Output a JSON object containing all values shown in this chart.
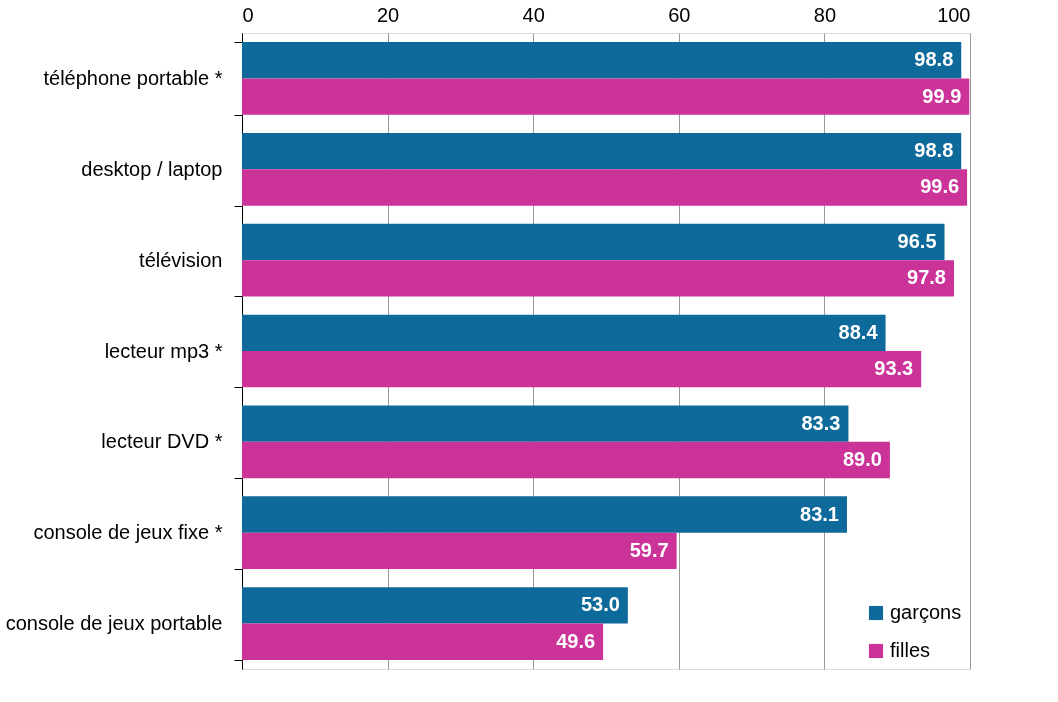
{
  "chart_data": {
    "type": "bar",
    "orientation": "horizontal",
    "categories": [
      "téléphone portable *",
      "desktop / laptop",
      "télévision",
      "lecteur mp3 *",
      "lecteur DVD *",
      "console de jeux fixe *",
      "console de jeux portable"
    ],
    "series": [
      {
        "name": "garçons",
        "color": "#0e6a9a",
        "values": [
          98.8,
          98.8,
          96.5,
          88.4,
          83.3,
          83.1,
          53.0
        ],
        "value_labels": [
          "98.8",
          "98.8",
          "96.5",
          "88.4",
          "83.3",
          "83.1",
          "53.0"
        ]
      },
      {
        "name": "filles",
        "color": "#cc3399",
        "values": [
          99.9,
          99.6,
          97.8,
          93.3,
          89.0,
          59.7,
          49.6
        ],
        "value_labels": [
          "99.9",
          "99.6",
          "97.8",
          "93.3",
          "89.0",
          "59.7",
          "49.6"
        ]
      }
    ],
    "xlim": [
      0,
      100
    ],
    "xticks": [
      0,
      20,
      40,
      60,
      80,
      100
    ],
    "grid": "x",
    "legend": "bottom right"
  }
}
